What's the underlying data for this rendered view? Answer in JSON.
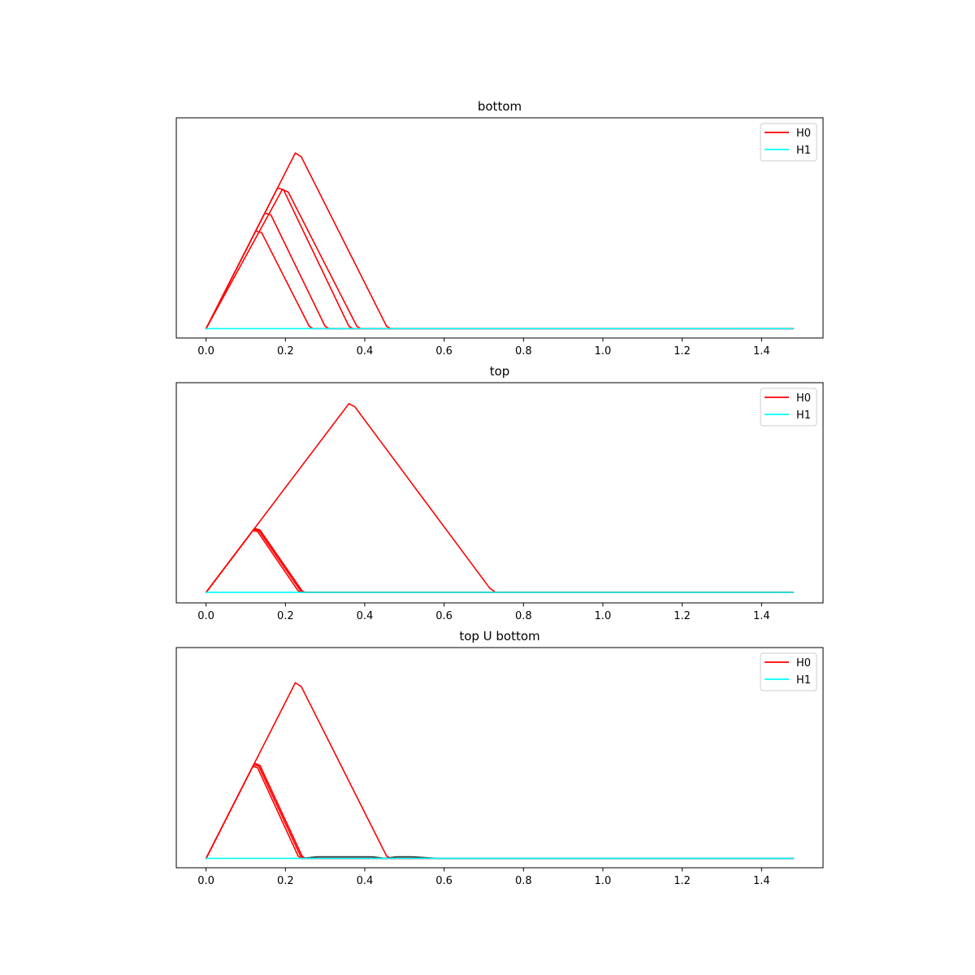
{
  "chart_data": [
    {
      "type": "line",
      "title": "bottom",
      "xlabel": "",
      "ylabel": "",
      "xlim": [
        -0.075,
        1.555
      ],
      "ylim": [
        -0.012,
        0.27
      ],
      "x_ticks": [
        "0.0",
        "0.2",
        "0.4",
        "0.6",
        "0.8",
        "1.0",
        "1.2",
        "1.4"
      ],
      "y_ticks_visible": false,
      "grid": false,
      "legend_position": "top-right",
      "legend": [
        {
          "label": "H0",
          "color": "#ff0000"
        },
        {
          "label": "H1",
          "color": "#00ffff"
        }
      ],
      "series": [
        {
          "group": "H0",
          "color": "#ff0000",
          "points": [
            [
              0,
              0
            ],
            [
              0.125,
              0.125
            ],
            [
              0.14,
              0.123
            ],
            [
              0.26,
              0.003
            ],
            [
              0.27,
              0
            ],
            [
              1.48,
              0
            ]
          ]
        },
        {
          "group": "H0",
          "color": "#ff0000",
          "points": [
            [
              0,
              0
            ],
            [
              0.148,
              0.148
            ],
            [
              0.163,
              0.146
            ],
            [
              0.3,
              0.003
            ],
            [
              0.31,
              0
            ],
            [
              1.48,
              0
            ]
          ]
        },
        {
          "group": "H0",
          "color": "#ff0000",
          "points": [
            [
              0,
              0
            ],
            [
              0.18,
              0.18
            ],
            [
              0.195,
              0.178
            ],
            [
              0.36,
              0.003
            ],
            [
              0.37,
              0
            ],
            [
              1.48,
              0
            ]
          ]
        },
        {
          "group": "H0",
          "color": "#ff0000",
          "points": [
            [
              0,
              0
            ],
            [
              0.192,
              0.178
            ],
            [
              0.207,
              0.175
            ],
            [
              0.38,
              0.003
            ],
            [
              0.39,
              0
            ],
            [
              1.48,
              0
            ]
          ]
        },
        {
          "group": "H0",
          "color": "#ff0000",
          "points": [
            [
              0,
              0
            ],
            [
              0.225,
              0.225
            ],
            [
              0.24,
              0.22
            ],
            [
              0.455,
              0.003
            ],
            [
              0.465,
              0
            ],
            [
              1.48,
              0
            ]
          ]
        },
        {
          "group": "H1",
          "color": "#00ffff",
          "points": [
            [
              0,
              0
            ],
            [
              1.48,
              0
            ]
          ]
        }
      ]
    },
    {
      "type": "line",
      "title": "top",
      "xlabel": "",
      "ylabel": "",
      "xlim": [
        -0.075,
        1.555
      ],
      "ylim": [
        -0.02,
        0.4
      ],
      "x_ticks": [
        "0.0",
        "0.2",
        "0.4",
        "0.6",
        "0.8",
        "1.0",
        "1.2",
        "1.4"
      ],
      "y_ticks_visible": false,
      "grid": false,
      "legend_position": "top-right",
      "legend": [
        {
          "label": "H0",
          "color": "#ff0000"
        },
        {
          "label": "H1",
          "color": "#00ffff"
        }
      ],
      "series": [
        {
          "group": "H0",
          "color": "#ff0000",
          "points": [
            [
              0,
              0
            ],
            [
              0.118,
              0.118
            ],
            [
              0.13,
              0.116
            ],
            [
              0.232,
              0.003
            ],
            [
              0.24,
              0
            ],
            [
              1.48,
              0
            ]
          ]
        },
        {
          "group": "H0",
          "color": "#ff0000",
          "points": [
            [
              0,
              0
            ],
            [
              0.12,
              0.12
            ],
            [
              0.133,
              0.118
            ],
            [
              0.238,
              0.003
            ],
            [
              0.246,
              0
            ],
            [
              1.48,
              0
            ]
          ]
        },
        {
          "group": "H0",
          "color": "#ff0000",
          "points": [
            [
              0,
              0
            ],
            [
              0.122,
              0.122
            ],
            [
              0.136,
              0.119
            ],
            [
              0.242,
              0.003
            ],
            [
              0.25,
              0
            ],
            [
              1.48,
              0
            ]
          ]
        },
        {
          "group": "H0",
          "color": "#ff0000",
          "points": [
            [
              0,
              0
            ],
            [
              0.36,
              0.36
            ],
            [
              0.375,
              0.354
            ],
            [
              0.715,
              0.008
            ],
            [
              0.73,
              0
            ],
            [
              1.48,
              0
            ]
          ]
        },
        {
          "group": "H1",
          "color": "#00ffff",
          "points": [
            [
              0,
              0
            ],
            [
              1.48,
              0
            ]
          ]
        }
      ]
    },
    {
      "type": "line",
      "title": "top U bottom",
      "xlabel": "",
      "ylabel": "",
      "xlim": [
        -0.075,
        1.555
      ],
      "ylim": [
        -0.012,
        0.27
      ],
      "x_ticks": [
        "0.0",
        "0.2",
        "0.4",
        "0.6",
        "0.8",
        "1.0",
        "1.2",
        "1.4"
      ],
      "y_ticks_visible": false,
      "grid": false,
      "legend_position": "top-right",
      "legend": [
        {
          "label": "H0",
          "color": "#ff0000"
        },
        {
          "label": "H1",
          "color": "#00ffff"
        }
      ],
      "series": [
        {
          "group": "H0",
          "color": "#ff0000",
          "points": [
            [
              0,
              0
            ],
            [
              0.118,
              0.118
            ],
            [
              0.13,
              0.116
            ],
            [
              0.232,
              0.003
            ],
            [
              0.24,
              0
            ],
            [
              1.48,
              0
            ]
          ]
        },
        {
          "group": "H0",
          "color": "#ff0000",
          "points": [
            [
              0,
              0
            ],
            [
              0.12,
              0.12
            ],
            [
              0.133,
              0.118
            ],
            [
              0.238,
              0.003
            ],
            [
              0.246,
              0
            ],
            [
              1.48,
              0
            ]
          ]
        },
        {
          "group": "H0",
          "color": "#ff0000",
          "points": [
            [
              0,
              0
            ],
            [
              0.122,
              0.122
            ],
            [
              0.136,
              0.119
            ],
            [
              0.242,
              0.003
            ],
            [
              0.25,
              0
            ],
            [
              1.48,
              0
            ]
          ]
        },
        {
          "group": "H0",
          "color": "#ff0000",
          "points": [
            [
              0,
              0
            ],
            [
              0.225,
              0.225
            ],
            [
              0.24,
              0.22
            ],
            [
              0.455,
              0.003
            ],
            [
              0.465,
              0
            ],
            [
              1.48,
              0
            ]
          ]
        },
        {
          "group": "H0",
          "color": "#333333",
          "points": [
            [
              0.24,
              0
            ],
            [
              0.28,
              0.002
            ],
            [
              0.3,
              0.002
            ],
            [
              0.42,
              0.002
            ],
            [
              0.45,
              0
            ],
            [
              0.48,
              0.002
            ],
            [
              0.52,
              0.002
            ],
            [
              0.58,
              0
            ],
            [
              1.48,
              0
            ]
          ]
        },
        {
          "group": "H1",
          "color": "#00ffff",
          "points": [
            [
              0,
              0
            ],
            [
              1.48,
              0
            ]
          ]
        }
      ]
    }
  ]
}
